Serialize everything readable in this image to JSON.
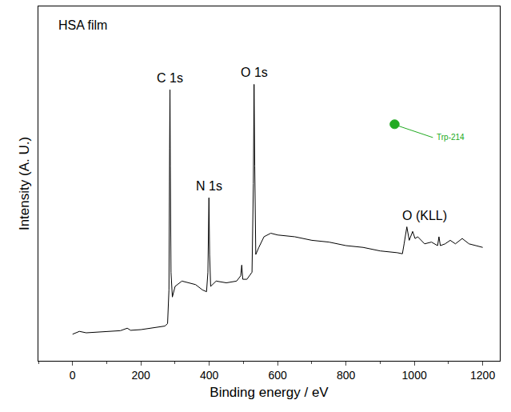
{
  "chart_data": {
    "type": "line",
    "x": [
      0,
      20,
      40,
      60,
      100,
      140,
      160,
      170,
      200,
      240,
      270,
      278,
      282,
      284,
      285,
      286,
      288,
      292,
      300,
      320,
      340,
      360,
      380,
      392,
      396,
      399,
      401,
      404,
      420,
      450,
      480,
      492,
      495,
      498,
      510,
      525,
      529,
      531,
      533,
      536,
      545,
      560,
      580,
      600,
      650,
      700,
      750,
      800,
      850,
      900,
      950,
      965,
      970,
      978,
      985,
      995,
      1002,
      1010,
      1030,
      1050,
      1068,
      1072,
      1076,
      1090,
      1105,
      1120,
      1140,
      1160,
      1180,
      1200
    ],
    "values": [
      7.5,
      8.3,
      7.9,
      8.0,
      8.2,
      8.5,
      9.2,
      8.6,
      8.8,
      9.3,
      9.8,
      10.5,
      20,
      60,
      76.5,
      55,
      25,
      18,
      21,
      22.5,
      22,
      21.5,
      20,
      19.5,
      25,
      46,
      30,
      21,
      22.5,
      22,
      22.5,
      24,
      27,
      23,
      23,
      25,
      50,
      78,
      55,
      30,
      32,
      35,
      36,
      35.5,
      35,
      34,
      33.5,
      32.5,
      32,
      31,
      30.5,
      30.2,
      33,
      37.8,
      34,
      36.5,
      34.5,
      35,
      33,
      33.5,
      32.5,
      35,
      32.5,
      33,
      34,
      33,
      34.5,
      33,
      32.5,
      32
    ],
    "color": "#000000",
    "xlabel": "Binding energy / eV",
    "ylabel": "Intensity (A. U.)",
    "xlim": [
      -100,
      1250
    ],
    "xticks": [
      0,
      200,
      400,
      600,
      800,
      1000,
      1200
    ],
    "ylim": [
      0,
      100
    ],
    "tick_labels": "x",
    "grid": false,
    "title": "HSA film",
    "annotations": [
      {
        "text": "C 1s",
        "x": 285,
        "y": 76.5
      },
      {
        "text": "N 1s",
        "x": 400,
        "y": 46
      },
      {
        "text": "O 1s",
        "x": 531,
        "y": 78
      },
      {
        "text": "O (KLL)",
        "x": 1030,
        "y": 37.8
      }
    ],
    "inset": {
      "label": "Trp-214",
      "color": "#22aa22"
    }
  }
}
